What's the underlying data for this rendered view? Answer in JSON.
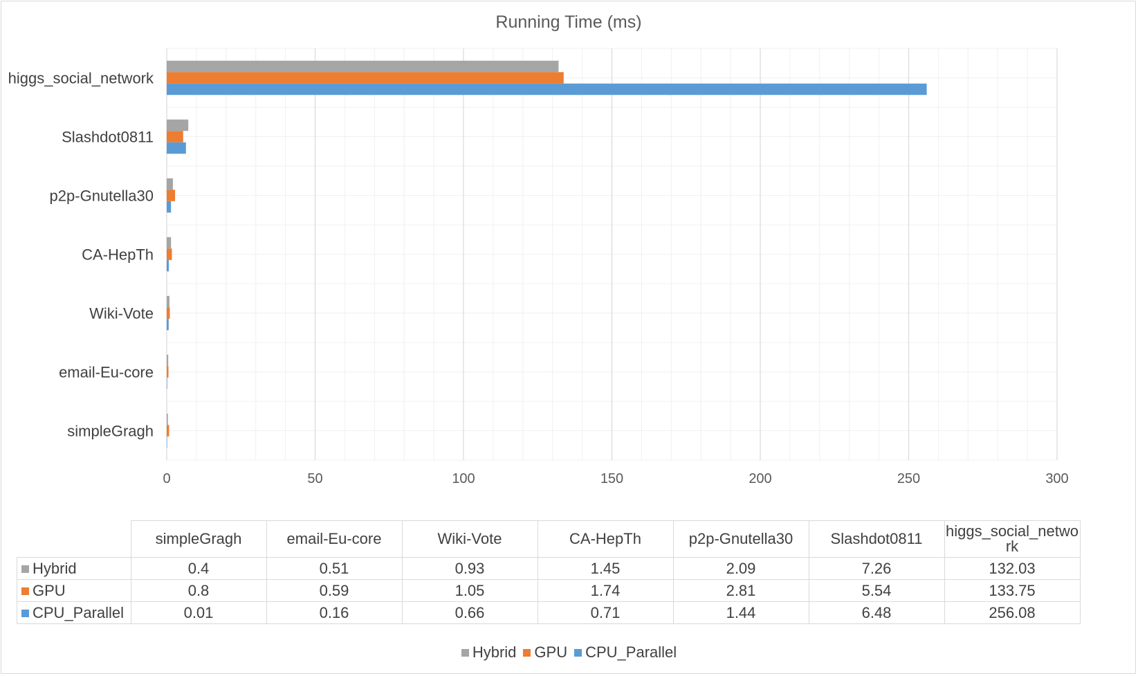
{
  "chart_data": {
    "type": "bar",
    "orientation": "horizontal",
    "title": "Running Time (ms)",
    "xlabel": "",
    "ylabel": "",
    "xlim": [
      0,
      300
    ],
    "x_ticks": [
      0,
      50,
      100,
      150,
      200,
      250,
      300
    ],
    "categories": [
      "simpleGragh",
      "email-Eu-core",
      "Wiki-Vote",
      "CA-HepTh",
      "p2p-Gnutella30",
      "Slashdot0811",
      "higgs_social_network"
    ],
    "table_headers": [
      "simpleGragh",
      "email-Eu-core",
      "Wiki-Vote",
      "CA-HepTh",
      "p2p-Gnutella30",
      "Slashdot0811",
      "higgs_social_netwo rk"
    ],
    "series": [
      {
        "name": "Hybrid",
        "color": "#a5a5a5",
        "values": [
          0.4,
          0.51,
          0.93,
          1.45,
          2.09,
          7.26,
          132.03
        ]
      },
      {
        "name": "GPU",
        "color": "#ed7d31",
        "values": [
          0.8,
          0.59,
          1.05,
          1.74,
          2.81,
          5.54,
          133.75
        ]
      },
      {
        "name": "CPU_Parallel",
        "color": "#5b9bd5",
        "values": [
          0.01,
          0.16,
          0.66,
          0.71,
          1.44,
          6.48,
          256.08
        ]
      }
    ],
    "grid": true,
    "legend_position": "bottom",
    "data_table": true
  }
}
